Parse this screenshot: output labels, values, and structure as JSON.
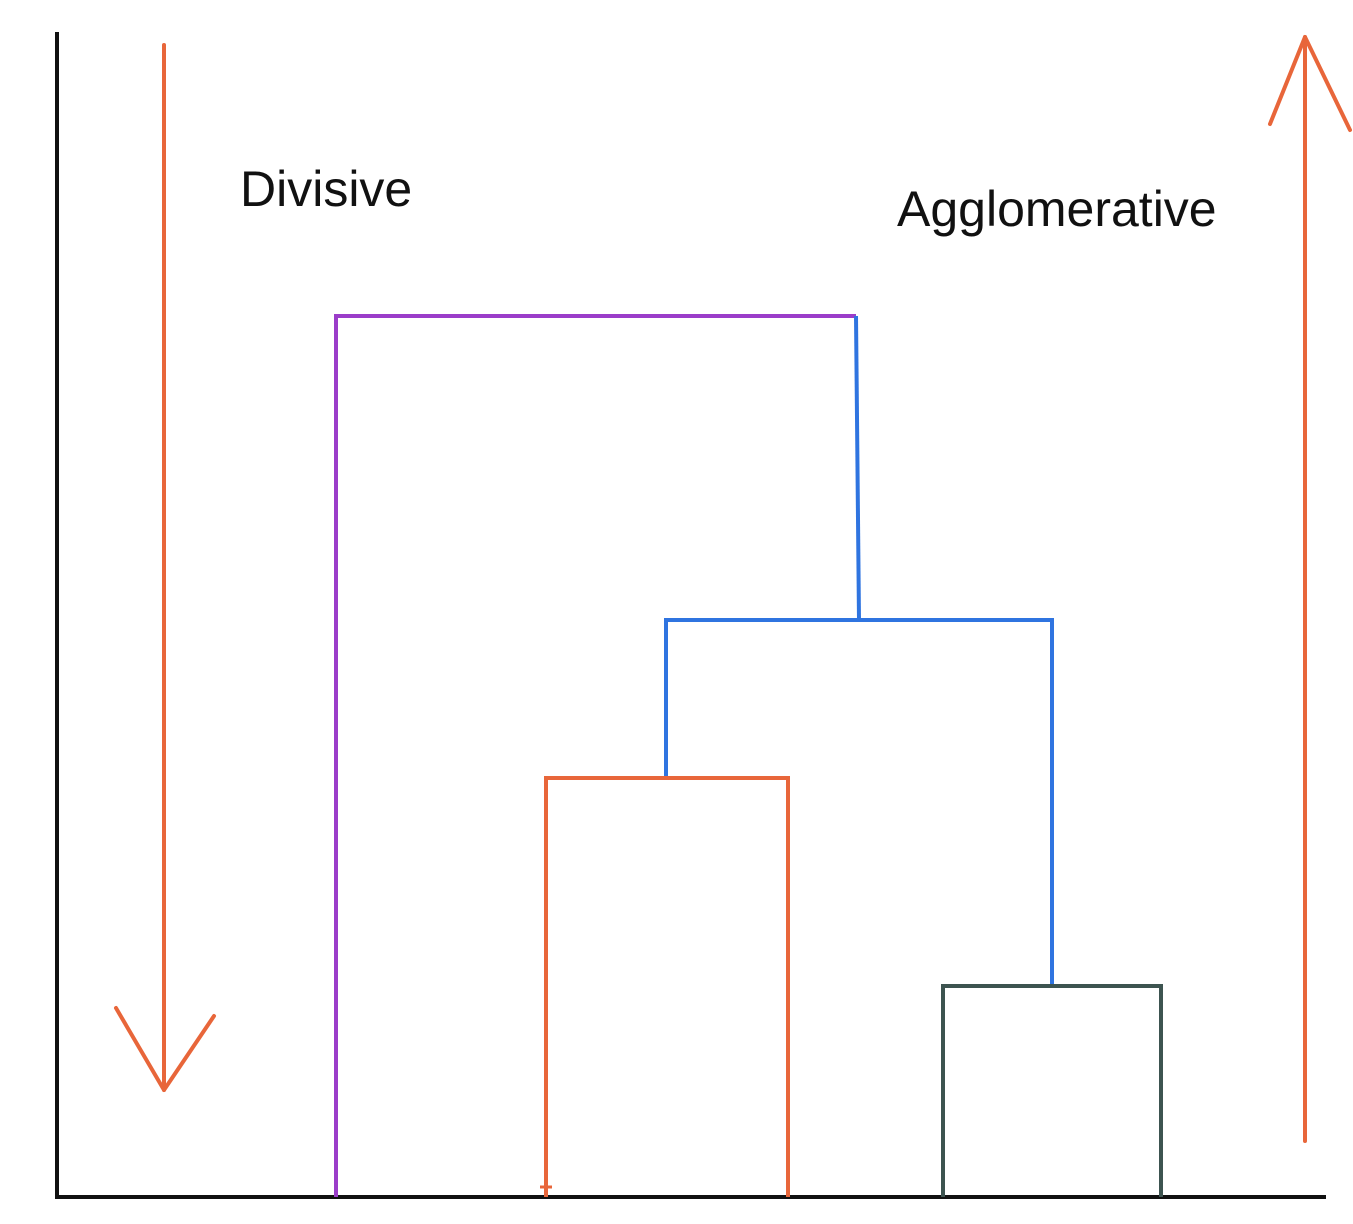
{
  "labels": {
    "divisive": "Divisive",
    "agglomerative": "Agglomerative"
  },
  "colors": {
    "axis": "#111111",
    "arrow": "#e8663a",
    "root_link": "#9b3dc9",
    "blue_link": "#2f74e0",
    "orange_link": "#e8663a",
    "green_link": "#3d5450"
  },
  "icons": {
    "divisive_arrow": "arrow-down-icon",
    "agglomerative_arrow": "arrow-up-icon"
  }
}
